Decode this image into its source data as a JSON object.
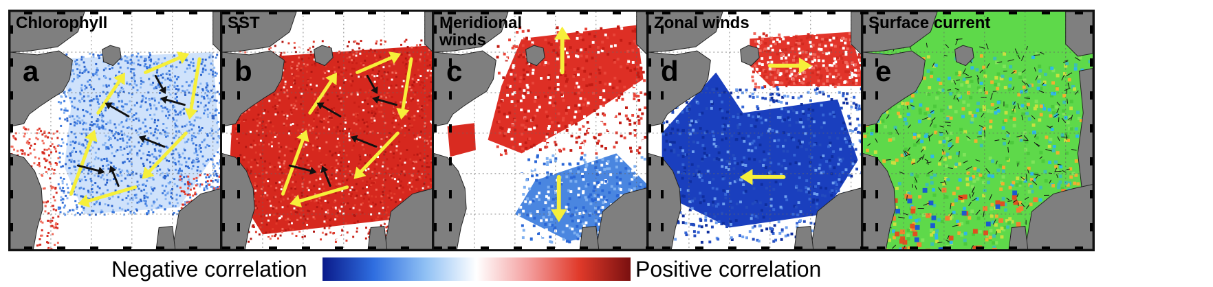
{
  "panels": [
    {
      "title": "Chlorophyll",
      "letter": "a",
      "field_color": "#3f7fe0",
      "edge_color": "#d42a20",
      "theme": "split-negative"
    },
    {
      "title": "SST",
      "letter": "b",
      "field_color": "#d6281e",
      "edge_color": "#c81e16",
      "theme": "positive"
    },
    {
      "title": "Meridional\nwinds",
      "letter": "c",
      "field_color": "#de2f25",
      "edge_color": "#4a86e0",
      "theme": "meridional"
    },
    {
      "title": "Zonal winds",
      "letter": "d",
      "field_color": "#1a3fbe",
      "edge_color": "#e2342a",
      "theme": "zonal"
    },
    {
      "title": "Surface current",
      "letter": "e",
      "field_color": "#5ed94a",
      "edge_color": "#e0a020",
      "theme": "current"
    }
  ],
  "colorbar": {
    "negative_label": "Negative correlation",
    "positive_label": "Positive correlation",
    "stops": [
      "#0a1a8a",
      "#2f6ee0",
      "#8fc0f4",
      "#ffffff",
      "#f4a0a0",
      "#e03a2a",
      "#7a1010"
    ]
  },
  "colors": {
    "land": "#7f7f7f",
    "arrow_yellow": "#f6ef3a",
    "arrow_black": "#111111",
    "grid": "#666666"
  },
  "icons": {
    "land": "landmass",
    "flow": "arrow"
  }
}
